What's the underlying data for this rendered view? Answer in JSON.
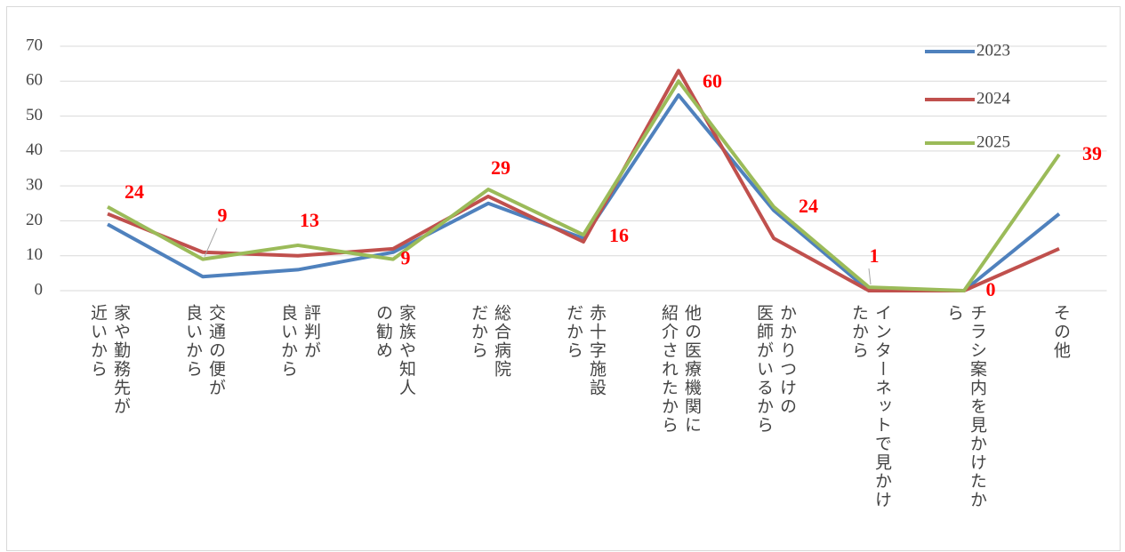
{
  "chart_data": {
    "type": "line",
    "categories": [
      "家や勤務先が\n近いから",
      "交通の便が\n良いから",
      "評判が\n良いから",
      "家族や知人\nの勧め",
      "総合病院\nだから",
      "赤十字施設\nだから",
      "他の医療機関に\n紹介されたから",
      "かかりつけの\n医師がいるから",
      "インターネットで見かけ\nたから",
      "チラシ案内を見かけたか\nら",
      "その他"
    ],
    "series": [
      {
        "name": "2023",
        "color": "#4f81bd",
        "values": [
          19,
          4,
          6,
          11,
          25,
          15,
          56,
          23,
          0,
          0,
          22
        ]
      },
      {
        "name": "2024",
        "color": "#c0504d",
        "values": [
          22,
          11,
          10,
          12,
          27,
          14,
          63,
          15,
          0,
          0,
          12
        ]
      },
      {
        "name": "2025",
        "color": "#9bbb59",
        "values": [
          24,
          9,
          13,
          9,
          29,
          16,
          60,
          24,
          1,
          0,
          39
        ],
        "show_value_labels": true
      }
    ],
    "ylim": [
      0,
      70
    ],
    "yticks": [
      0,
      10,
      20,
      30,
      40,
      50,
      60,
      70
    ],
    "grid": true,
    "legend": "top-right"
  }
}
